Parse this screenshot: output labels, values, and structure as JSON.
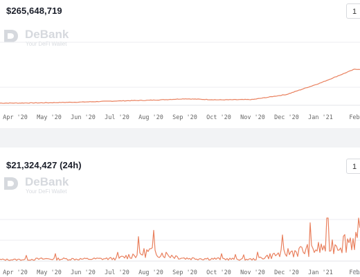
{
  "panels": [
    {
      "value": "$265,648,719",
      "range_button": "1",
      "brand": {
        "name": "DeBank",
        "tagline": "Your DeFi Wallet"
      },
      "x_ticks": [
        "Apr '20",
        "May '20",
        "Jun '20",
        "Jul '20",
        "Aug '20",
        "Sep '20",
        "Oct '20",
        "Nov '20",
        "Dec '20",
        "Jan '21",
        "Feb"
      ]
    },
    {
      "value": "$21,324,427 (24h)",
      "range_button": "1",
      "brand": {
        "name": "DeBank",
        "tagline": "Your DeFi Wallet"
      },
      "x_ticks": [
        "Apr '20",
        "May '20",
        "Jun '20",
        "Jul '20",
        "Aug '20",
        "Sep '20",
        "Oct '20",
        "Nov '20",
        "Dec '20",
        "Jan '21",
        "Feb"
      ],
      "credit": "PAI"
    }
  ],
  "colors": {
    "series": "#e9805e",
    "divider": "#f2f3f5"
  },
  "chart_data": [
    {
      "type": "line",
      "title": "$265,648,719",
      "x": [
        "Apr '20",
        "May '20",
        "Jun '20",
        "Jul '20",
        "Aug '20",
        "Sep '20",
        "Oct '20",
        "Nov '20",
        "Dec '20",
        "Jan '21",
        "Feb"
      ],
      "series": [
        {
          "values": [
            0.06,
            0.07,
            0.09,
            0.12,
            0.14,
            0.18,
            0.15,
            0.16,
            0.3,
            0.62,
            1.0
          ]
        }
      ],
      "ylim": [
        0,
        1
      ]
    },
    {
      "type": "line",
      "title": "$21,324,427 (24h)",
      "x": [
        "Apr '20",
        "May '20",
        "Jun '20",
        "Jul '20",
        "Aug '20",
        "Sep '20",
        "Oct '20",
        "Nov '20",
        "Dec '20",
        "Jan '21",
        "Feb"
      ],
      "series": [
        {
          "values": [
            0.05,
            0.08,
            0.07,
            0.09,
            0.35,
            0.1,
            0.08,
            0.06,
            0.3,
            0.45,
            0.8
          ]
        }
      ],
      "ylim": [
        0,
        1
      ]
    }
  ]
}
